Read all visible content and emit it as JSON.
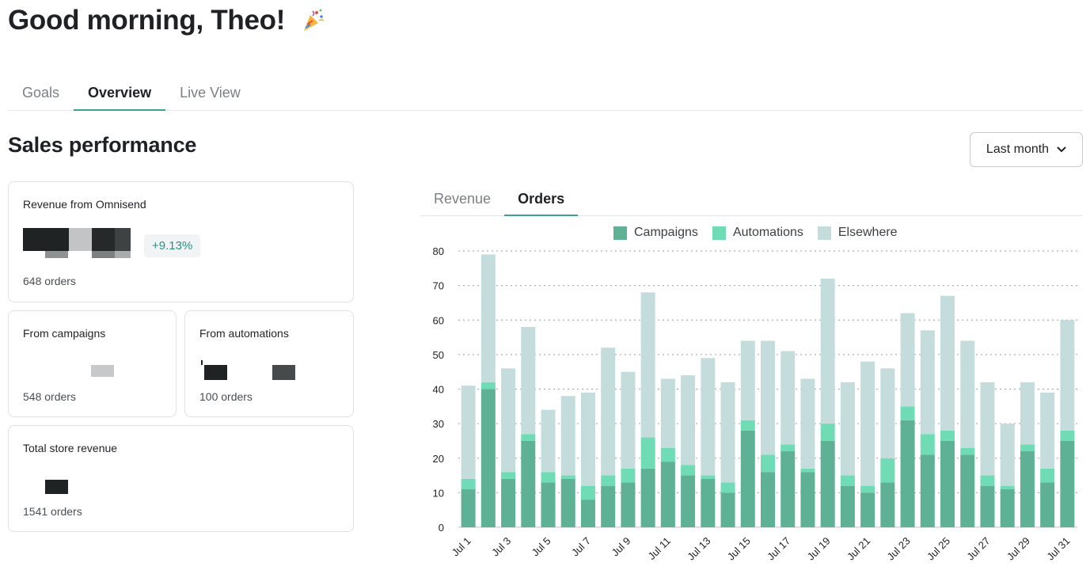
{
  "header": {
    "greeting": "Good morning, Theo!",
    "greeting_icon": "party-popper-icon"
  },
  "tabs": [
    {
      "label": "Goals",
      "active": false
    },
    {
      "label": "Overview",
      "active": true
    },
    {
      "label": "Live View",
      "active": false
    }
  ],
  "section": {
    "title": "Sales performance",
    "period_select": {
      "value": "Last month",
      "icon": "chevron-down-icon"
    }
  },
  "cards": {
    "omnisend": {
      "label": "Revenue from Omnisend",
      "delta": "+9.13%",
      "orders": "648 orders"
    },
    "campaigns": {
      "label": "From campaigns",
      "orders": "548 orders"
    },
    "automations": {
      "label": "From automations",
      "orders": "100 orders"
    },
    "total": {
      "label": "Total store revenue",
      "orders": "1541 orders"
    }
  },
  "chart_tabs": [
    {
      "label": "Revenue",
      "active": false
    },
    {
      "label": "Orders",
      "active": true
    }
  ],
  "colors": {
    "campaigns": "#5fb195",
    "automations": "#6fdcb5",
    "elsewhere": "#c4dcdc",
    "accent": "#3a9f94"
  },
  "chart_data": {
    "type": "bar",
    "stacked": true,
    "categories": [
      "Jul 1",
      "Jul 2",
      "Jul 3",
      "Jul 4",
      "Jul 5",
      "Jul 6",
      "Jul 7",
      "Jul 8",
      "Jul 9",
      "Jul 10",
      "Jul 11",
      "Jul 12",
      "Jul 13",
      "Jul 14",
      "Jul 15",
      "Jul 16",
      "Jul 17",
      "Jul 18",
      "Jul 19",
      "Jul 20",
      "Jul 21",
      "Jul 22",
      "Jul 23",
      "Jul 24",
      "Jul 25",
      "Jul 26",
      "Jul 27",
      "Jul 28",
      "Jul 29",
      "Jul 30",
      "Jul 31"
    ],
    "tick_labels": [
      "Jul 1",
      "Jul 3",
      "Jul 5",
      "Jul 7",
      "Jul 9",
      "Jul 11",
      "Jul 13",
      "Jul 15",
      "Jul 17",
      "Jul 19",
      "Jul 21",
      "Jul 23",
      "Jul 25",
      "Jul 27",
      "Jul 29",
      "Jul 31"
    ],
    "series": [
      {
        "name": "Campaigns",
        "values": [
          11,
          40,
          14,
          25,
          13,
          14,
          8,
          12,
          13,
          17,
          19,
          15,
          14,
          10,
          28,
          16,
          22,
          16,
          25,
          12,
          10,
          13,
          31,
          21,
          25,
          21,
          12,
          11,
          22,
          13,
          25
        ]
      },
      {
        "name": "Automations",
        "values": [
          3,
          2,
          2,
          2,
          3,
          1,
          4,
          3,
          4,
          9,
          4,
          3,
          1,
          3,
          3,
          5,
          2,
          1,
          5,
          3,
          2,
          7,
          4,
          6,
          3,
          2,
          3,
          1,
          2,
          4,
          3
        ]
      },
      {
        "name": "Elsewhere",
        "values": [
          27,
          37,
          30,
          31,
          18,
          23,
          27,
          37,
          28,
          42,
          20,
          26,
          34,
          29,
          23,
          33,
          27,
          26,
          42,
          27,
          36,
          26,
          27,
          30,
          39,
          31,
          27,
          18,
          18,
          22,
          32
        ]
      }
    ],
    "yticks": [
      0,
      10,
      20,
      30,
      40,
      50,
      60,
      70,
      80
    ],
    "ylim": [
      0,
      80
    ],
    "grid": true,
    "legend_position": "top-center"
  }
}
